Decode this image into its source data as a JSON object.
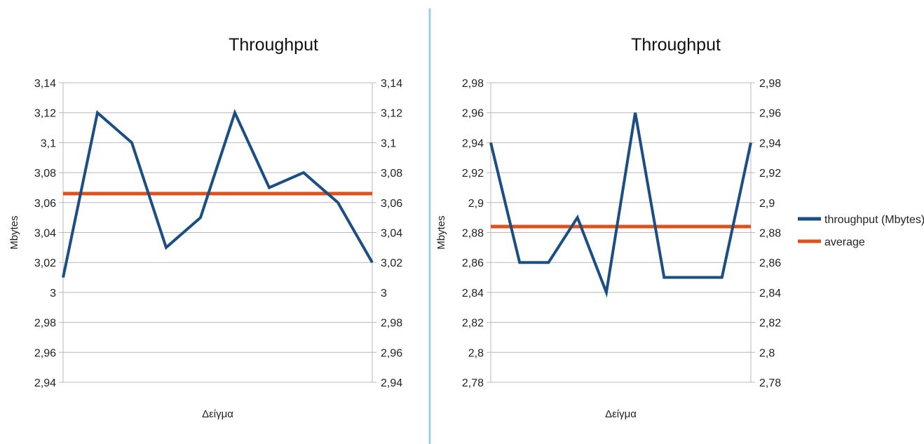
{
  "colors": {
    "series_throughput": "#1b4f83",
    "series_average": "#e0501f",
    "grid": "#b8b8b8",
    "divider": "#9fd0e0"
  },
  "chart_data": [
    {
      "type": "line",
      "title": "Throughput",
      "xlabel": "Δείγμα",
      "ylabel": "Mbytes",
      "ylim": [
        2.94,
        3.14
      ],
      "yticks": [
        "3,14",
        "3,12",
        "3,1",
        "3,08",
        "3,06",
        "3,04",
        "3,02",
        "3",
        "2,98",
        "2,96",
        "2,94"
      ],
      "grid": true,
      "legend": "none",
      "x": [
        1,
        2,
        3,
        4,
        5,
        6,
        7,
        8,
        9,
        10
      ],
      "series": [
        {
          "values": [
            3.01,
            3.12,
            3.1,
            3.03,
            3.05,
            3.12,
            3.07,
            3.08,
            3.06,
            3.02
          ]
        },
        {
          "values": [
            3.066,
            3.066,
            3.066,
            3.066,
            3.066,
            3.066,
            3.066,
            3.066,
            3.066,
            3.066
          ]
        }
      ]
    },
    {
      "type": "line",
      "title": "Throughput",
      "xlabel": "Δείγμα",
      "ylabel": "Mbytes",
      "ylim": [
        2.78,
        2.98
      ],
      "yticks": [
        "2,98",
        "2,96",
        "2,94",
        "2,92",
        "2,9",
        "2,88",
        "2,86",
        "2,84",
        "2,82",
        "2,8",
        "2,78"
      ],
      "grid": true,
      "legend": "right",
      "x": [
        1,
        2,
        3,
        4,
        5,
        6,
        7,
        8,
        9,
        10
      ],
      "series": [
        {
          "name": "throughput (Mbytes)",
          "values": [
            2.94,
            2.86,
            2.86,
            2.89,
            2.84,
            2.96,
            2.85,
            2.85,
            2.85,
            2.94
          ]
        },
        {
          "name": "average",
          "values": [
            2.884,
            2.884,
            2.884,
            2.884,
            2.884,
            2.884,
            2.884,
            2.884,
            2.884,
            2.884
          ]
        }
      ]
    }
  ]
}
